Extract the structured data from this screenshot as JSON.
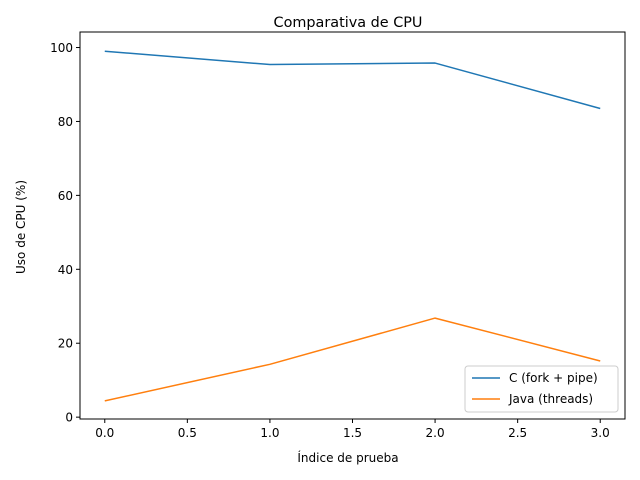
{
  "chart_data": {
    "type": "line",
    "title": "Comparativa de CPU",
    "xlabel": "Índice de prueba",
    "ylabel": "Uso de CPU (%)",
    "x": [
      0,
      1,
      2,
      3
    ],
    "xlim": [
      -0.15,
      3.15
    ],
    "ylim": [
      -0.5,
      104.2
    ],
    "xticks": [
      0.0,
      0.5,
      1.0,
      1.5,
      2.0,
      2.5,
      3.0
    ],
    "xtick_labels": [
      "0.0",
      "0.5",
      "1.0",
      "1.5",
      "2.0",
      "2.5",
      "3.0"
    ],
    "yticks": [
      0,
      20,
      40,
      60,
      80,
      100
    ],
    "ytick_labels": [
      "0",
      "20",
      "40",
      "60",
      "80",
      "100"
    ],
    "grid": false,
    "legend_position": "bottom-right",
    "series": [
      {
        "name": "C (fork + pipe)",
        "color": "#1f77b4",
        "values": [
          99.0,
          95.4,
          95.8,
          83.5
        ]
      },
      {
        "name": "Java (threads)",
        "color": "#ff7f0e",
        "values": [
          4.4,
          14.3,
          26.8,
          15.2
        ]
      }
    ]
  }
}
